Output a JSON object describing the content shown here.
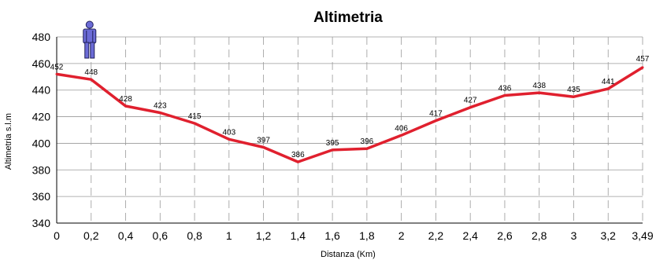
{
  "chart_data": {
    "type": "line",
    "title": "Altimetria",
    "xlabel": "Distanza (Km)",
    "ylabel": "Altimetria s.l.m",
    "categories": [
      "0",
      "0,2",
      "0,4",
      "0,6",
      "0,8",
      "1",
      "1,2",
      "1,4",
      "1,6",
      "1,8",
      "2",
      "2,2",
      "2,4",
      "2,6",
      "2,8",
      "3",
      "3,2",
      "3,49"
    ],
    "series": [
      {
        "values": [
          452,
          448,
          428,
          423,
          415,
          403,
          397,
          386,
          395,
          396,
          406,
          417,
          427,
          436,
          438,
          435,
          441,
          457
        ]
      }
    ],
    "ylim": [
      340,
      480
    ],
    "yticks": [
      "340",
      "360",
      "380",
      "400",
      "420",
      "440",
      "460",
      "480"
    ],
    "grid": "x dashed, y solid",
    "colors": {
      "line": "#e0202e",
      "grid": "#9a9a9a"
    },
    "annotations": [
      {
        "icon": "person-icon",
        "at_category": "0,2"
      }
    ]
  }
}
